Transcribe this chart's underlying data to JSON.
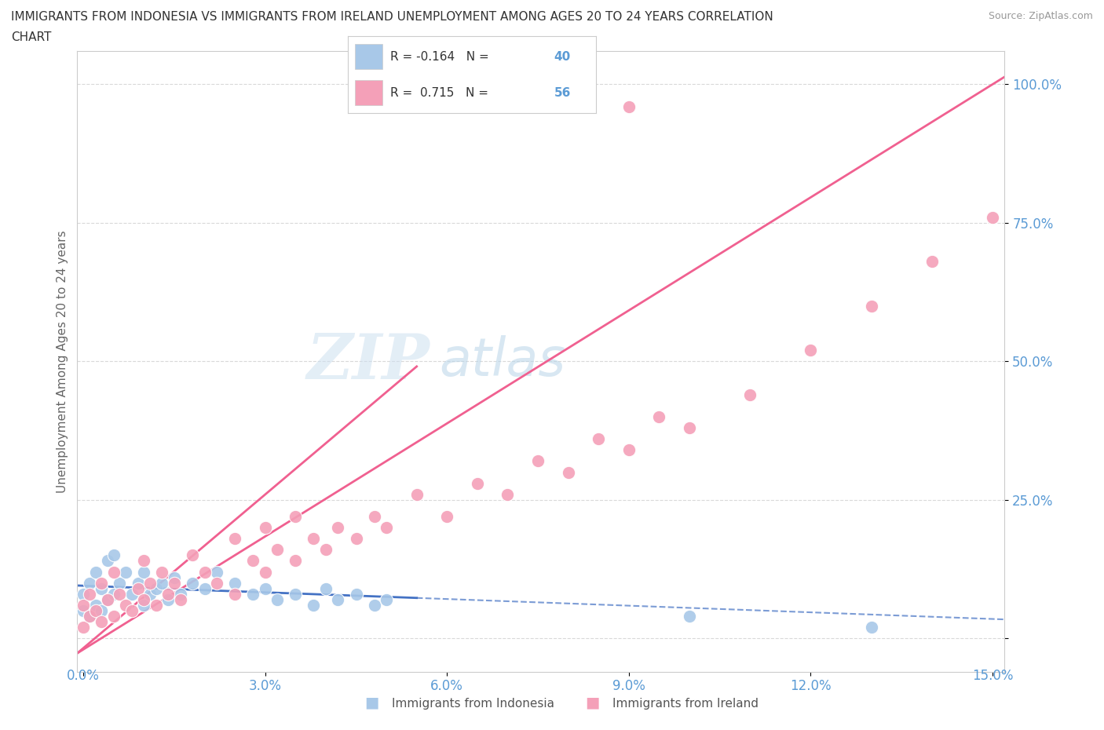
{
  "title_line1": "IMMIGRANTS FROM INDONESIA VS IMMIGRANTS FROM IRELAND UNEMPLOYMENT AMONG AGES 20 TO 24 YEARS CORRELATION",
  "title_line2": "CHART",
  "source": "Source: ZipAtlas.com",
  "ylabel": "Unemployment Among Ages 20 to 24 years",
  "indonesia_color": "#a8c8e8",
  "ireland_color": "#f4a0b8",
  "indonesia_line_color": "#4472c4",
  "ireland_line_color": "#f06090",
  "R_indonesia": -0.164,
  "N_indonesia": 40,
  "R_ireland": 0.715,
  "N_ireland": 56,
  "watermark_zip": "ZIP",
  "watermark_atlas": "atlas",
  "background_color": "#ffffff",
  "grid_color": "#d0d0d0",
  "xlim": [
    -0.001,
    0.152
  ],
  "ylim": [
    -0.06,
    1.06
  ],
  "legend_label_indonesia": "Immigrants from Indonesia",
  "legend_label_ireland": "Immigrants from Ireland"
}
